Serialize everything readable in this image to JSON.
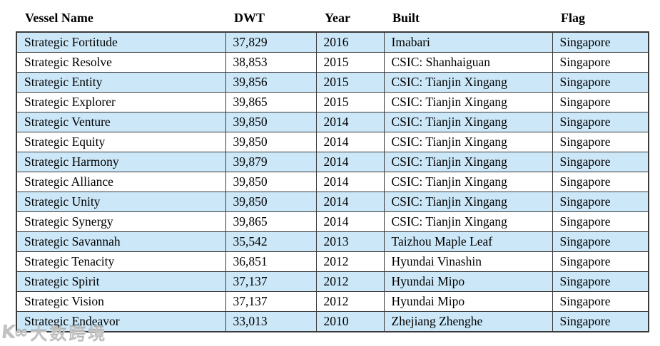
{
  "page": {
    "background_color": "#ffffff",
    "text_color": "#000000",
    "row_alt_color": "#cbe7f8",
    "table_border_color": "#3a3a3a"
  },
  "table": {
    "columns": [
      "Vessel Name",
      "DWT",
      "Year",
      "Built",
      "Flag"
    ],
    "rows": [
      [
        "Strategic Fortitude",
        "37,829",
        "2016",
        "Imabari",
        "Singapore"
      ],
      [
        "Strategic Resolve",
        "38,853",
        "2015",
        "CSIC: Shanhaiguan",
        "Singapore"
      ],
      [
        "Strategic Entity",
        "39,856",
        "2015",
        "CSIC: Tianjin Xingang",
        "Singapore"
      ],
      [
        "Strategic Explorer",
        "39,865",
        "2015",
        "CSIC: Tianjin Xingang",
        "Singapore"
      ],
      [
        "Strategic Venture",
        "39,850",
        "2014",
        "CSIC: Tianjin Xingang",
        "Singapore"
      ],
      [
        "Strategic Equity",
        "39,850",
        "2014",
        "CSIC: Tianjin Xingang",
        "Singapore"
      ],
      [
        "Strategic Harmony",
        "39,879",
        "2014",
        "CSIC: Tianjin Xingang",
        "Singapore"
      ],
      [
        "Strategic Alliance",
        "39,850",
        "2014",
        "CSIC: Tianjin Xingang",
        "Singapore"
      ],
      [
        "Strategic Unity",
        "39,850",
        "2014",
        "CSIC: Tianjin Xingang",
        "Singapore"
      ],
      [
        "Strategic Synergy",
        "39,865",
        "2014",
        "CSIC: Tianjin Xingang",
        "Singapore"
      ],
      [
        "Strategic Savannah",
        "35,542",
        "2013",
        "Taizhou Maple Leaf",
        "Singapore"
      ],
      [
        "Strategic Tenacity",
        "36,851",
        "2012",
        "Hyundai Vinashin",
        "Singapore"
      ],
      [
        "Strategic Spirit",
        "37,137",
        "2012",
        "Hyundai Mipo",
        "Singapore"
      ],
      [
        "Strategic Vision",
        "37,137",
        "2012",
        "Hyundai Mipo",
        "Singapore"
      ],
      [
        "Strategic Endeavor",
        "33,013",
        "2010",
        "Zhejiang Zhenghe",
        "Singapore"
      ]
    ]
  },
  "watermark": {
    "logo": "K∞",
    "text": "大数跨境"
  }
}
